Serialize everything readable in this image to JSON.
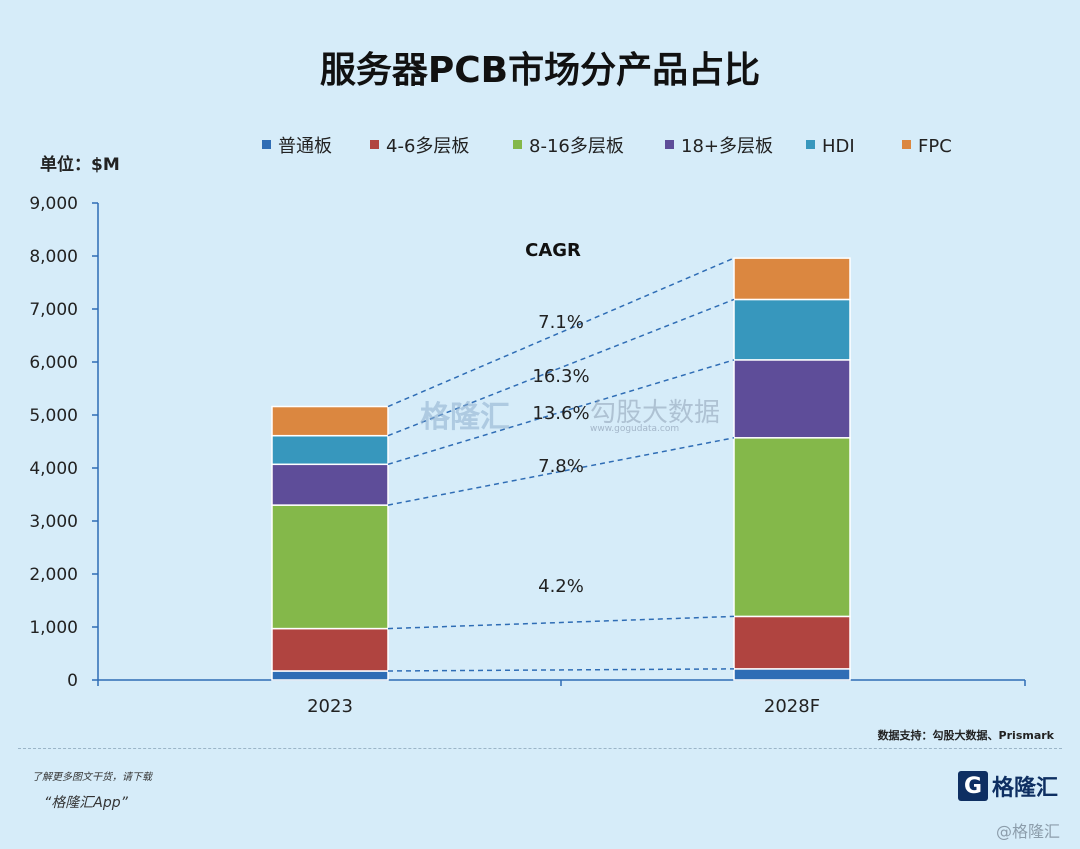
{
  "unit_label": "单位：$M",
  "cagr_title": "CAGR",
  "cagr_labels": [
    "7.1%",
    "16.3%",
    "13.6%",
    "7.8%",
    "4.2%"
  ],
  "source": "数据支持：勾股大数据、Prismark",
  "footer": {
    "tip": "了解更多图文干货，请下载",
    "app": "“格隆汇App”",
    "logo_text": "格隆汇",
    "logo_letter": "G",
    "corner_watermark": "@格隆汇"
  },
  "watermark": {
    "brand": "格隆汇",
    "site": "勾股大数据",
    "url": "www.gogudata.com"
  },
  "colors": {
    "普通板": "#2f6db5",
    "4-6多层板": "#b04440",
    "8-16多层板": "#84b84a",
    "18+多层板": "#5e4d99",
    "HDI": "#3797bd",
    "FPC": "#db8740"
  },
  "chart_data": {
    "type": "bar",
    "stacked": true,
    "title": "服务器PCB市场分产品占比",
    "categories": [
      "2023",
      "2028F"
    ],
    "series": [
      {
        "name": "普通板",
        "values": [
          170,
          210
        ]
      },
      {
        "name": "4-6多层板",
        "values": [
          800,
          990
        ]
      },
      {
        "name": "8-16多层板",
        "values": [
          2330,
          3370
        ]
      },
      {
        "name": "18+多层板",
        "values": [
          770,
          1470
        ]
      },
      {
        "name": "HDI",
        "values": [
          540,
          1140
        ]
      },
      {
        "name": "FPC",
        "values": [
          550,
          780
        ]
      }
    ],
    "ylim": [
      0,
      9000
    ],
    "yticks": [
      "0",
      "1,000",
      "2,000",
      "3,000",
      "4,000",
      "5,000",
      "6,000",
      "7,000",
      "8,000",
      "9,000"
    ],
    "ytick_values": [
      0,
      1000,
      2000,
      3000,
      4000,
      5000,
      6000,
      7000,
      8000,
      9000
    ],
    "legend_position": "top",
    "ylabel": "单位：$M"
  }
}
